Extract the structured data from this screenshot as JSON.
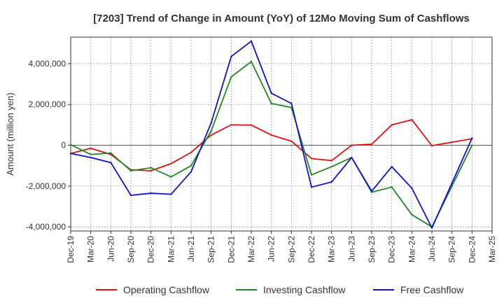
{
  "chart_data": {
    "type": "line",
    "title": "[7203]  Trend of Change in Amount (YoY) of 12Mo Moving Sum of Cashflows",
    "xlabel": "",
    "ylabel": "Amount (million yen)",
    "ylim": [
      -4200000,
      5300000
    ],
    "yticks": [
      -4000000,
      -2000000,
      0,
      2000000,
      4000000
    ],
    "ytick_labels": [
      "-4,000,000",
      "-2,000,000",
      "0",
      "2,000,000",
      "4,000,000"
    ],
    "categories": [
      "Dec-19",
      "Mar-20",
      "Jun-20",
      "Sep-20",
      "Dec-20",
      "Mar-21",
      "Jun-21",
      "Sep-21",
      "Dec-21",
      "Mar-22",
      "Jun-22",
      "Sep-22",
      "Dec-22",
      "Mar-23",
      "Jun-23",
      "Sep-23",
      "Dec-23",
      "Mar-24",
      "Jun-24",
      "Sep-24",
      "Dec-24",
      "Mar-25"
    ],
    "series": [
      {
        "name": "Operating Cashflow",
        "color": "#dd1111",
        "values": [
          -400000,
          -150000,
          -450000,
          -1200000,
          -1250000,
          -900000,
          -350000,
          500000,
          1000000,
          990000,
          500000,
          200000,
          -650000,
          -750000,
          0,
          50000,
          1000000,
          1250000,
          -20000,
          150000,
          320000,
          null
        ]
      },
      {
        "name": "Investing Cashflow",
        "color": "#228822",
        "values": [
          30000,
          -450000,
          -380000,
          -1250000,
          -1100000,
          -1550000,
          -1000000,
          700000,
          3350000,
          4100000,
          2050000,
          1850000,
          -1450000,
          -1050000,
          -600000,
          -2300000,
          -2050000,
          -3400000,
          -4000000,
          -2000000,
          0,
          null
        ]
      },
      {
        "name": "Free Cashflow",
        "color": "#1111cc",
        "values": [
          -400000,
          -600000,
          -850000,
          -2450000,
          -2350000,
          -2400000,
          -1300000,
          1100000,
          4350000,
          5100000,
          2550000,
          2050000,
          -2050000,
          -1800000,
          -600000,
          -2250000,
          -1050000,
          -2100000,
          -4050000,
          -1850000,
          350000,
          null
        ]
      }
    ],
    "legend": {
      "placement": "bottom",
      "items": [
        "Operating Cashflow",
        "Investing Cashflow",
        "Free Cashflow"
      ]
    }
  }
}
